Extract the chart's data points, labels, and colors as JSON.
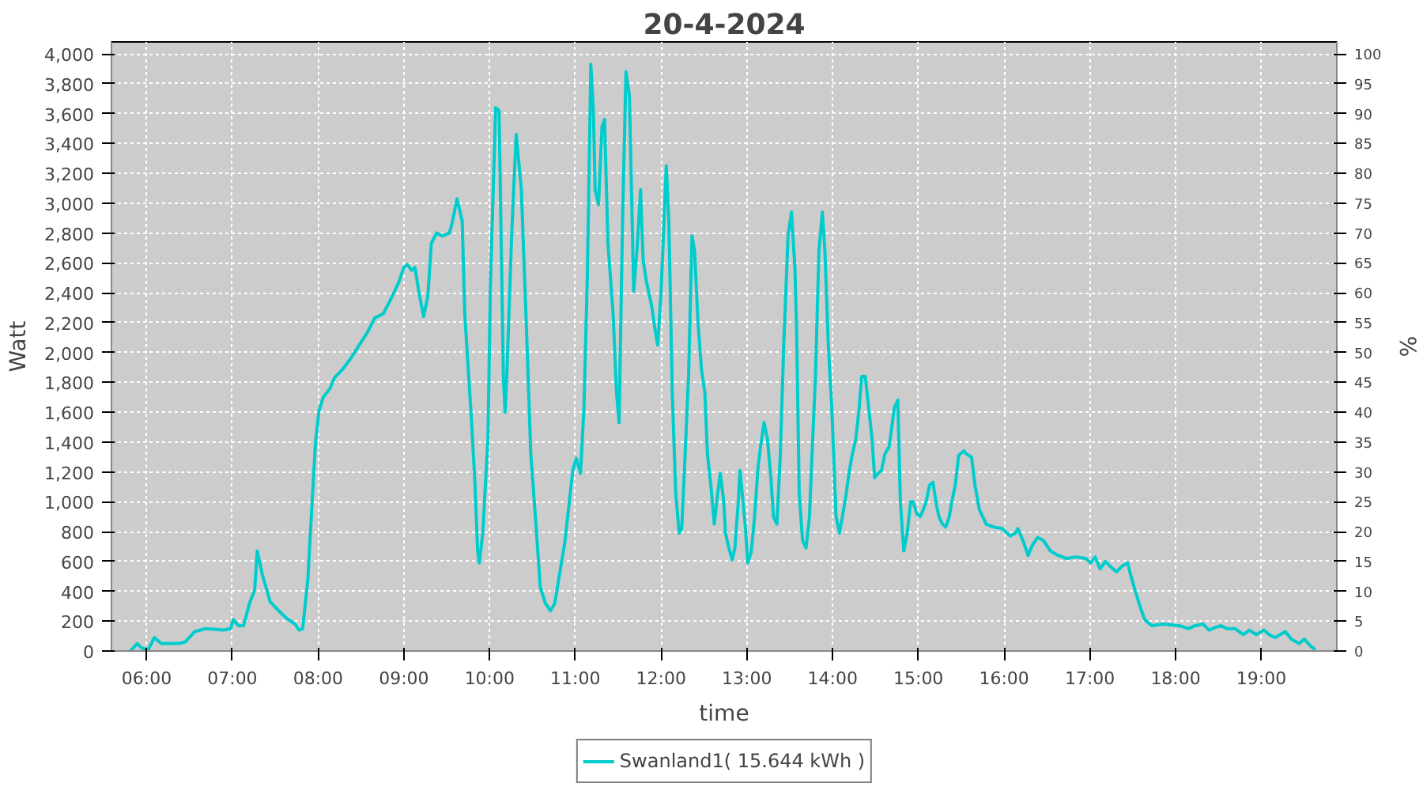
{
  "chart_data": {
    "type": "line",
    "title": "20-4-2024",
    "xlabel": "time",
    "ylabel": "Watt",
    "y2label": "%",
    "xlim": [
      5.59,
      19.88
    ],
    "xticks": [
      {
        "value": 6,
        "label": "06:00"
      },
      {
        "value": 7,
        "label": "07:00"
      },
      {
        "value": 8,
        "label": "08:00"
      },
      {
        "value": 9,
        "label": "09:00"
      },
      {
        "value": 10,
        "label": "10:00"
      },
      {
        "value": 11,
        "label": "11:00"
      },
      {
        "value": 12,
        "label": "12:00"
      },
      {
        "value": 13,
        "label": "13:00"
      },
      {
        "value": 14,
        "label": "14:00"
      },
      {
        "value": 15,
        "label": "15:00"
      },
      {
        "value": 16,
        "label": "16:00"
      },
      {
        "value": 17,
        "label": "17:00"
      },
      {
        "value": 18,
        "label": "18:00"
      },
      {
        "value": 19,
        "label": "19:00"
      }
    ],
    "ylim": [
      0,
      4080
    ],
    "yticks": [
      0,
      200,
      400,
      600,
      800,
      {
        "value": 1000,
        "label": "1,000"
      },
      {
        "value": 1200,
        "label": "1,200"
      },
      {
        "value": 1400,
        "label": "1,400"
      },
      {
        "value": 1600,
        "label": "1,600"
      },
      {
        "value": 1800,
        "label": "1,800"
      },
      {
        "value": 2000,
        "label": "2,000"
      },
      {
        "value": 2200,
        "label": "2,200"
      },
      {
        "value": 2400,
        "label": "2,400"
      },
      {
        "value": 2600,
        "label": "2,600"
      },
      {
        "value": 2800,
        "label": "2,800"
      },
      {
        "value": 3000,
        "label": "3,000"
      },
      {
        "value": 3200,
        "label": "3,200"
      },
      {
        "value": 3400,
        "label": "3,400"
      },
      {
        "value": 3600,
        "label": "3,600"
      },
      {
        "value": 3800,
        "label": "3,800"
      },
      {
        "value": 4000,
        "label": "4,000"
      }
    ],
    "y2lim": [
      0,
      102
    ],
    "y2ticks": [
      0,
      5,
      10,
      15,
      20,
      25,
      30,
      35,
      40,
      45,
      50,
      55,
      60,
      65,
      70,
      75,
      80,
      85,
      90,
      95,
      100
    ],
    "grid": true,
    "legend": "bottom",
    "line_style": "solid",
    "series": [
      {
        "name": "Swanland1( 15.644 kWh )",
        "color": "#00cccc",
        "x": [
          5.81,
          5.89,
          5.94,
          6.02,
          6.09,
          6.17,
          6.38,
          6.45,
          6.56,
          6.69,
          6.9,
          6.98,
          7.01,
          7.07,
          7.13,
          7.2,
          7.26,
          7.29,
          7.35,
          7.44,
          7.54,
          7.63,
          7.73,
          7.78,
          7.82,
          7.88,
          7.93,
          7.97,
          8.01,
          8.06,
          8.14,
          8.19,
          8.29,
          8.38,
          8.48,
          8.57,
          8.66,
          8.76,
          8.85,
          8.94,
          9.0,
          9.04,
          9.09,
          9.13,
          9.17,
          9.23,
          9.28,
          9.32,
          9.38,
          9.45,
          9.53,
          9.56,
          9.62,
          9.68,
          9.71,
          9.79,
          9.83,
          9.86,
          9.88,
          9.92,
          9.98,
          10.01,
          10.07,
          10.11,
          10.14,
          10.16,
          10.18,
          10.2,
          10.26,
          10.31,
          10.37,
          10.43,
          10.48,
          10.54,
          10.59,
          10.65,
          10.71,
          10.76,
          10.82,
          10.88,
          10.91,
          10.97,
          11.01,
          11.06,
          11.1,
          11.14,
          11.18,
          11.21,
          11.23,
          11.27,
          11.31,
          11.34,
          11.38,
          11.44,
          11.48,
          11.51,
          11.55,
          11.59,
          11.63,
          11.66,
          11.68,
          11.72,
          11.76,
          11.79,
          11.83,
          11.89,
          11.93,
          11.96,
          12.0,
          12.06,
          12.09,
          12.13,
          12.17,
          12.21,
          12.24,
          12.28,
          12.32,
          12.36,
          12.39,
          12.43,
          12.47,
          12.51,
          12.54,
          12.58,
          12.62,
          12.66,
          12.69,
          12.73,
          12.75,
          12.79,
          12.83,
          12.86,
          12.9,
          12.92,
          12.98,
          13.01,
          13.05,
          13.09,
          13.13,
          13.16,
          13.2,
          13.24,
          13.28,
          13.31,
          13.35,
          13.39,
          13.43,
          13.48,
          13.52,
          13.56,
          13.58,
          13.61,
          13.65,
          13.69,
          13.73,
          13.76,
          13.8,
          13.84,
          13.88,
          13.91,
          13.95,
          13.99,
          14.04,
          14.08,
          14.12,
          14.16,
          14.19,
          14.23,
          14.27,
          14.31,
          14.34,
          14.38,
          14.42,
          14.46,
          14.49,
          14.53,
          14.57,
          14.61,
          14.66,
          14.72,
          14.76,
          14.79,
          14.83,
          14.87,
          14.91,
          14.94,
          14.98,
          15.02,
          15.06,
          15.09,
          15.13,
          15.17,
          15.21,
          15.24,
          15.28,
          15.32,
          15.36,
          15.39,
          15.43,
          15.47,
          15.53,
          15.56,
          15.62,
          15.66,
          15.71,
          15.79,
          15.88,
          15.98,
          16.07,
          16.13,
          16.16,
          16.22,
          16.28,
          16.33,
          16.39,
          16.46,
          16.54,
          16.63,
          16.73,
          16.84,
          16.95,
          17.01,
          17.06,
          17.12,
          17.18,
          17.25,
          17.31,
          17.38,
          17.44,
          17.48,
          17.53,
          17.59,
          17.64,
          17.72,
          17.85,
          18.04,
          18.15,
          18.23,
          18.32,
          18.39,
          18.47,
          18.53,
          18.6,
          18.69,
          18.79,
          18.86,
          18.94,
          19.03,
          19.09,
          19.16,
          19.28,
          19.35,
          19.44,
          19.5,
          19.58,
          19.63
        ],
        "values": [
          0,
          50,
          20,
          10,
          90,
          50,
          50,
          60,
          130,
          150,
          140,
          150,
          210,
          170,
          170,
          320,
          410,
          670,
          510,
          330,
          270,
          220,
          180,
          140,
          150,
          480,
          1000,
          1400,
          1610,
          1700,
          1760,
          1830,
          1890,
          1960,
          2050,
          2130,
          2230,
          2260,
          2360,
          2470,
          2570,
          2590,
          2550,
          2570,
          2420,
          2240,
          2380,
          2730,
          2800,
          2780,
          2800,
          2860,
          3030,
          2880,
          2260,
          1530,
          1110,
          670,
          590,
          790,
          1420,
          2470,
          3640,
          3620,
          2570,
          1840,
          1600,
          1840,
          2830,
          3460,
          3090,
          2150,
          1320,
          850,
          430,
          320,
          270,
          320,
          530,
          740,
          900,
          1210,
          1290,
          1190,
          1630,
          2520,
          3930,
          3620,
          3090,
          2990,
          3510,
          3560,
          2730,
          2260,
          1730,
          1530,
          2880,
          3880,
          3720,
          2940,
          2410,
          2700,
          3090,
          2620,
          2470,
          2310,
          2150,
          2050,
          2410,
          3250,
          2880,
          1730,
          1060,
          790,
          820,
          1320,
          1840,
          2780,
          2680,
          2200,
          1890,
          1730,
          1320,
          1110,
          850,
          1060,
          1190,
          1000,
          790,
          690,
          610,
          690,
          1000,
          1210,
          850,
          590,
          660,
          900,
          1230,
          1370,
          1530,
          1420,
          1160,
          900,
          850,
          1320,
          2050,
          2780,
          2940,
          2570,
          2150,
          1060,
          740,
          690,
          900,
          1320,
          1840,
          2680,
          2940,
          2680,
          2050,
          1630,
          900,
          790,
          920,
          1060,
          1190,
          1320,
          1420,
          1630,
          1840,
          1840,
          1630,
          1420,
          1160,
          1190,
          1210,
          1320,
          1370,
          1630,
          1680,
          1000,
          670,
          790,
          1000,
          1000,
          920,
          900,
          950,
          1000,
          1110,
          1130,
          980,
          900,
          850,
          830,
          900,
          1000,
          1110,
          1310,
          1340,
          1320,
          1300,
          1110,
          950,
          850,
          830,
          820,
          770,
          790,
          820,
          740,
          640,
          710,
          760,
          740,
          670,
          640,
          620,
          630,
          620,
          590,
          630,
          550,
          600,
          560,
          530,
          570,
          590,
          500,
          400,
          290,
          210,
          170,
          180,
          170,
          150,
          170,
          180,
          140,
          160,
          170,
          150,
          150,
          110,
          140,
          110,
          140,
          110,
          90,
          130,
          80,
          50,
          80,
          30,
          10
        ]
      }
    ]
  }
}
